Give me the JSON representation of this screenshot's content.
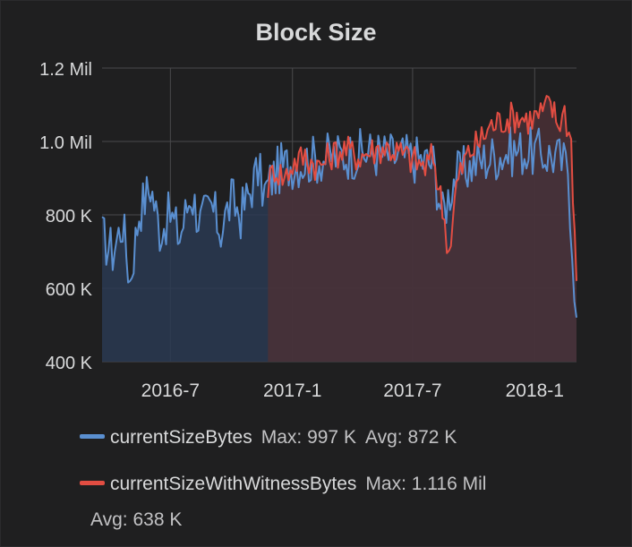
{
  "panel": {
    "title": "Block Size"
  },
  "chart_data": {
    "type": "area",
    "title": "Block Size",
    "xlabel": "",
    "ylabel": "",
    "x_ticks": [
      "2016-7",
      "2017-1",
      "2017-7",
      "2018-1"
    ],
    "y_ticks": [
      "400 K",
      "600 K",
      "800 K",
      "1.0 Mil",
      "1.2 Mil"
    ],
    "y_tick_values": [
      400000,
      600000,
      800000,
      1000000,
      1200000
    ],
    "ylim": [
      400000,
      1200000
    ],
    "xlim": [
      "2016-03-20",
      "2018-03-05"
    ],
    "x_tick_dates": [
      "2016-07-01",
      "2017-01-01",
      "2017-07-01",
      "2018-01-01"
    ],
    "grid": true,
    "legend_position": "bottom",
    "series": [
      {
        "name": "currentSizeBytes",
        "color": "#5a8fd0",
        "fill": "#2a3a52",
        "points": [
          [
            "2016-03-20",
            740000
          ],
          [
            "2016-04-05",
            700000
          ],
          [
            "2016-04-20",
            780000
          ],
          [
            "2016-05-01",
            620000
          ],
          [
            "2016-05-15",
            810000
          ],
          [
            "2016-06-01",
            880000
          ],
          [
            "2016-06-15",
            760000
          ],
          [
            "2016-07-01",
            800000
          ],
          [
            "2016-07-15",
            740000
          ],
          [
            "2016-08-01",
            860000
          ],
          [
            "2016-08-15",
            780000
          ],
          [
            "2016-09-01",
            820000
          ],
          [
            "2016-09-15",
            760000
          ],
          [
            "2016-10-01",
            840000
          ],
          [
            "2016-10-15",
            800000
          ],
          [
            "2016-11-01",
            880000
          ],
          [
            "2016-11-10",
            920000
          ],
          [
            "2016-11-20",
            860000
          ],
          [
            "2016-12-01",
            900000
          ],
          [
            "2016-12-15",
            930000
          ],
          [
            "2017-01-01",
            940000
          ],
          [
            "2017-02-01",
            950000
          ],
          [
            "2017-03-01",
            960000
          ],
          [
            "2017-04-01",
            965000
          ],
          [
            "2017-05-01",
            970000
          ],
          [
            "2017-06-01",
            960000
          ],
          [
            "2017-07-01",
            955000
          ],
          [
            "2017-08-01",
            940000
          ],
          [
            "2017-08-15",
            800000
          ],
          [
            "2017-09-01",
            900000
          ],
          [
            "2017-10-01",
            940000
          ],
          [
            "2017-11-01",
            960000
          ],
          [
            "2017-12-01",
            975000
          ],
          [
            "2018-01-01",
            970000
          ],
          [
            "2018-02-01",
            960000
          ],
          [
            "2018-02-20",
            930000
          ],
          [
            "2018-03-05",
            520000
          ]
        ]
      },
      {
        "name": "currentSizeWithWitnessBytes",
        "color": "#e24d42",
        "fill": "#4a3036",
        "points": [
          [
            "2016-11-25",
            880000
          ],
          [
            "2016-12-05",
            930000
          ],
          [
            "2016-12-20",
            900000
          ],
          [
            "2017-01-01",
            940000
          ],
          [
            "2017-01-20",
            960000
          ],
          [
            "2017-02-10",
            930000
          ],
          [
            "2017-03-01",
            965000
          ],
          [
            "2017-03-20",
            980000
          ],
          [
            "2017-04-10",
            960000
          ],
          [
            "2017-05-01",
            975000
          ],
          [
            "2017-05-20",
            985000
          ],
          [
            "2017-06-10",
            970000
          ],
          [
            "2017-07-01",
            950000
          ],
          [
            "2017-07-20",
            930000
          ],
          [
            "2017-08-01",
            960000
          ],
          [
            "2017-08-15",
            820000
          ],
          [
            "2017-08-25",
            700000
          ],
          [
            "2017-09-05",
            880000
          ],
          [
            "2017-09-20",
            960000
          ],
          [
            "2017-10-10",
            1000000
          ],
          [
            "2017-10-25",
            1040000
          ],
          [
            "2017-11-15",
            1060000
          ],
          [
            "2017-12-05",
            1070000
          ],
          [
            "2017-12-25",
            1060000
          ],
          [
            "2018-01-10",
            1075000
          ],
          [
            "2018-01-25",
            1100000
          ],
          [
            "2018-02-05",
            1050000
          ],
          [
            "2018-02-15",
            1080000
          ],
          [
            "2018-02-25",
            1000000
          ],
          [
            "2018-03-05",
            620000
          ]
        ]
      }
    ]
  },
  "legend": {
    "items": [
      {
        "name": "currentSizeBytes",
        "color": "#5a8fd0",
        "max_label": "Max: 997 K",
        "avg_label": "Avg: 872 K"
      },
      {
        "name": "currentSizeWithWitnessBytes",
        "color": "#e24d42",
        "max_label": "Max: 1.116 Mil",
        "avg_label": "Avg: 638 K"
      }
    ]
  }
}
